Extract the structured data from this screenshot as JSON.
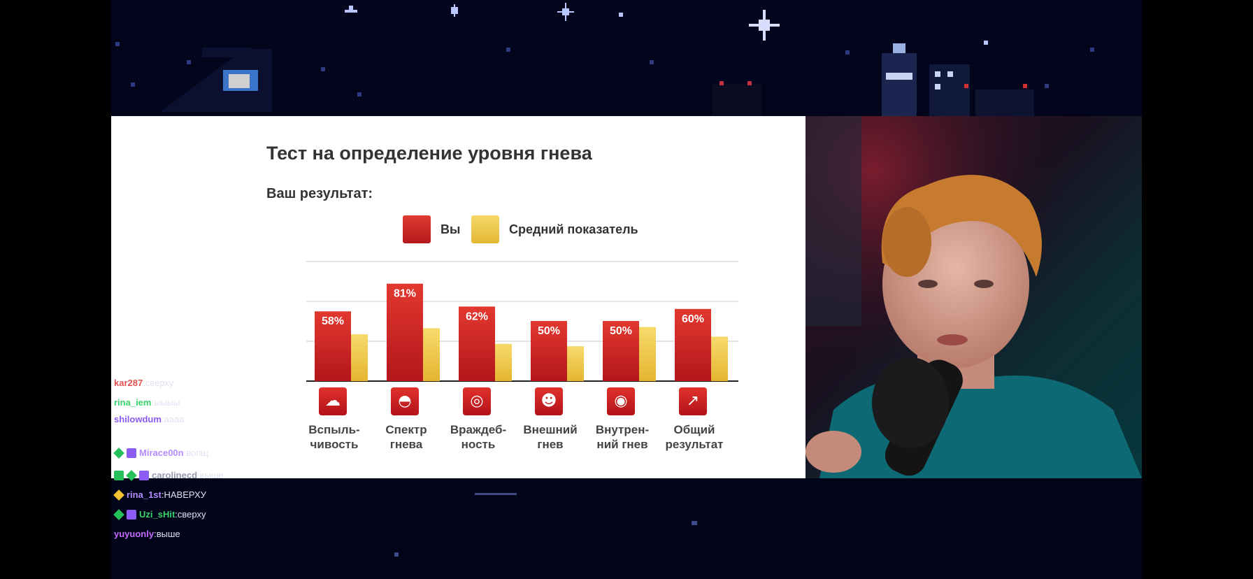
{
  "quiz": {
    "title": "Тест на определение уровня гнева",
    "subtitle": "Ваш результат:",
    "legend_you": "Вы",
    "legend_avg": "Средний показатель"
  },
  "chart_data": {
    "type": "bar",
    "title": "",
    "categories": [
      "Вспыль-\nчивость",
      "Спектр\nгнева",
      "Враждеб-\nность",
      "Внешний\nгнев",
      "Внутрен-\nний гнев",
      "Общий\nрезультат"
    ],
    "series": [
      {
        "name": "Вы",
        "values": [
          58,
          81,
          62,
          50,
          50,
          60
        ],
        "color": "#d42a2a"
      },
      {
        "name": "Средний показатель",
        "values": [
          39,
          44,
          31,
          29,
          45,
          37
        ],
        "color": "#f0c94a"
      }
    ],
    "data_labels": [
      "58%",
      "81%",
      "62%",
      "50%",
      "50%",
      "60%"
    ],
    "ylim": [
      0,
      100
    ],
    "grid": true,
    "legend": "top"
  },
  "chart_icons": [
    "cloud-lightning-icon",
    "gauge-icon",
    "head-spiral-icon",
    "speaking-head-icon",
    "head-sound-icon",
    "graph-icon"
  ],
  "chat": [
    {
      "user": "kar287",
      "text": "сверху",
      "color": "#e05050",
      "badges": []
    },
    {
      "user": "rina_iem",
      "text": "ыыыы",
      "color": "#3bd36b",
      "badges": []
    },
    {
      "user": "shilowdum",
      "text": "аааа",
      "color": "#8a5cf5",
      "badges": []
    },
    {
      "user": "Mirace00n",
      "text": "вопщ",
      "color": "#b68cff",
      "badges": [
        "diamond-green",
        "sq-purple"
      ]
    },
    {
      "user": "carolinecd",
      "text": "выше",
      "color": "#9a9ab0",
      "badges": [
        "sq-green",
        "diamond-green",
        "sq-purple"
      ]
    },
    {
      "user": "rina_1st",
      "text": "НАВЕРХУ",
      "color": "#b38cff",
      "badges": [
        "diamond-yellow"
      ]
    },
    {
      "user": "Uzi_sHit",
      "text": "сверху",
      "color": "#3bd36b",
      "badges": [
        "diamond-green",
        "sq-purple"
      ]
    },
    {
      "user": "yuyuonly",
      "text": "выше",
      "color": "#c66bff",
      "badges": []
    }
  ]
}
